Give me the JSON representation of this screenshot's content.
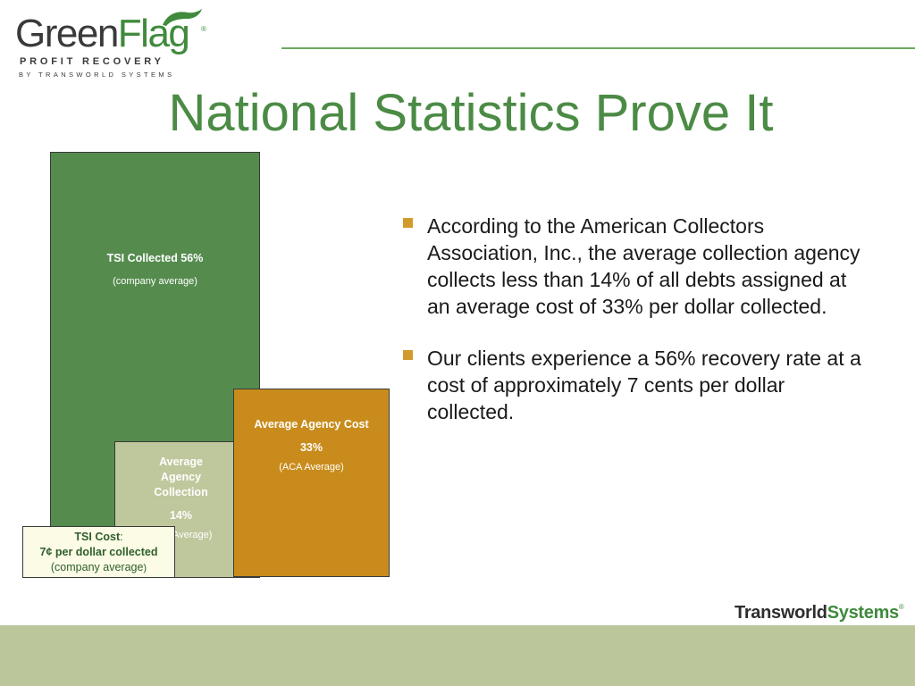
{
  "logo": {
    "word_part1": "Green",
    "word_part2": "Flag",
    "registered": "®",
    "subtitle": "PROFIT RECOVERY",
    "byline": "BY TRANSWORLD SYSTEMS",
    "flag_icon": "flag-icon"
  },
  "title": "National Statistics Prove It",
  "chart": {
    "tsi_collected": {
      "line1": "TSI Collected 56%",
      "line2": "(company average)"
    },
    "avg_agency_collection": {
      "line1": "Average",
      "line2": "Agency",
      "line3": "Collection",
      "value": "14%",
      "note": "Average)"
    },
    "avg_agency_cost": {
      "line1": "Average Agency Cost",
      "value": "33%",
      "note": "(ACA Average)"
    },
    "tsi_cost": {
      "label": "TSI Cost",
      "colon": ":",
      "line2": "7¢ per dollar collected",
      "line3": "(company average",
      "line3_end": ")"
    }
  },
  "chart_data": {
    "type": "area",
    "series": [
      {
        "name": "TSI Collected",
        "value": 56
      },
      {
        "name": "Average Agency Collection",
        "value": 14
      },
      {
        "name": "Average Agency Cost",
        "value": 33
      },
      {
        "name": "TSI Cost",
        "value": 7
      }
    ],
    "units": "%"
  },
  "bullets": [
    {
      "text": "According to the American Collectors Association, Inc.,  the average collection agency collects less than 14% of all debts assigned at an average cost of 33% per dollar collected."
    },
    {
      "text": "Our clients experience a 56% recovery rate at a cost of approximately 7 cents per dollar collected."
    }
  ],
  "footer": {
    "brand_part1": "Transworld",
    "brand_part2": "Systems",
    "registered": "®"
  },
  "colors": {
    "green": "#558c4e",
    "title_green": "#4b8b45",
    "sage": "#bfc79c",
    "gold": "#c98c1c",
    "bullet": "#d09b2c",
    "footer": "#bbc79a"
  }
}
